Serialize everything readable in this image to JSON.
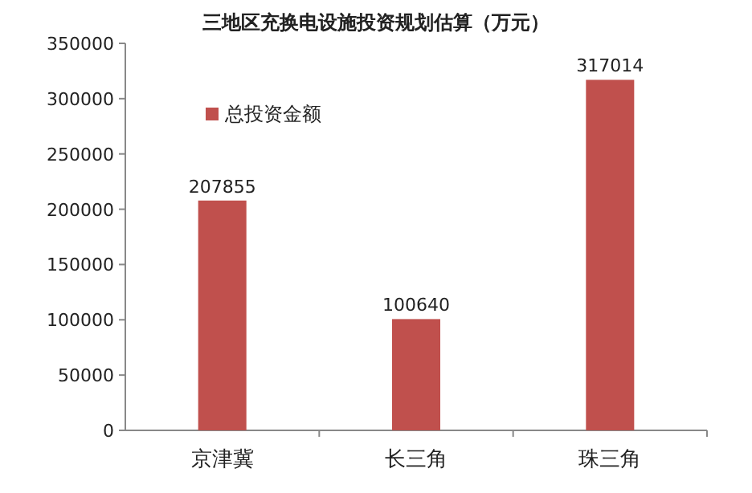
{
  "chart_data": {
    "type": "bar",
    "title": "三地区充换电设施投资规划估算（万元）",
    "categories": [
      "京津冀",
      "长三角",
      "珠三角"
    ],
    "series": [
      {
        "name": "总投资金额",
        "color": "#c0504d",
        "values": [
          207855,
          100640,
          317014
        ]
      }
    ],
    "ylim": [
      0,
      350000
    ],
    "yticks": [
      0,
      50000,
      100000,
      150000,
      200000,
      250000,
      300000,
      350000
    ],
    "data_labels": true,
    "legend": "top left",
    "grid": false
  }
}
